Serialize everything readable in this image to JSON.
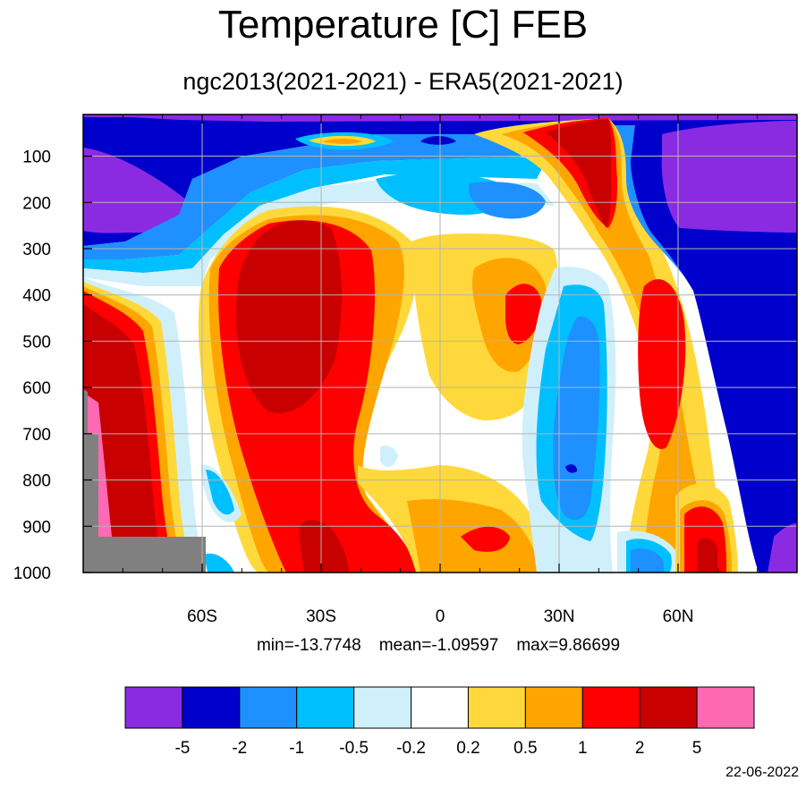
{
  "title": "Temperature [C] FEB",
  "subtitle": "ngc2013(2021-2021) - ERA5(2021-2021)",
  "stats": {
    "min": "min=-13.7748",
    "mean": "mean=-1.09597",
    "max": "max=9.86699"
  },
  "date": "22-06-2022",
  "chart_data": {
    "type": "heatmap",
    "title": "Temperature [C] FEB",
    "subtitle": "ngc2013(2021-2021) - ERA5(2021-2021)",
    "x_axis": {
      "ticks": [
        -60,
        -30,
        0,
        30,
        60
      ],
      "tick_labels": [
        "60S",
        "30S",
        "0",
        "30N",
        "60N"
      ],
      "range": [
        -90,
        90
      ]
    },
    "y_axis": {
      "ticks": [
        100,
        200,
        300,
        400,
        500,
        600,
        700,
        800,
        900,
        1000
      ],
      "tick_labels": [
        "100",
        "200",
        "300",
        "400",
        "500",
        "600",
        "700",
        "800",
        "900",
        "1000"
      ],
      "range": [
        10,
        1000
      ],
      "inverted": true
    },
    "grid": true,
    "contour_levels": [
      "-5",
      "-2",
      "-1",
      "-0.5",
      "-0.2",
      "0.2",
      "0.5",
      "1",
      "2",
      "5"
    ],
    "colors": [
      "#8a2be2",
      "#0000cd",
      "#1e90ff",
      "#00bfff",
      "#cff0fb",
      "#ffffff",
      "#ffd93b",
      "#ffa500",
      "#ff0000",
      "#c80000",
      "#ff69b4"
    ],
    "missing_color": "#808080",
    "legend_placement": "bottom",
    "statistics": {
      "min": -13.7748,
      "mean": -1.09597,
      "max": 9.86699
    }
  }
}
